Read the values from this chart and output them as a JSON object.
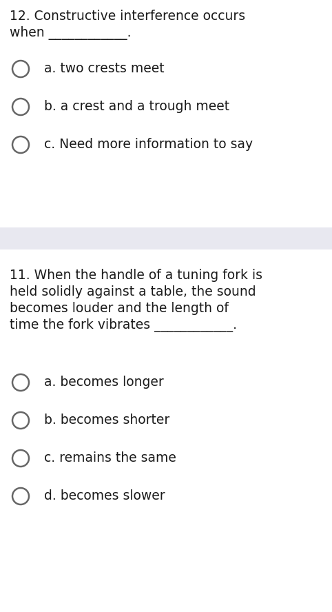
{
  "bg_color": "#ffffff",
  "divider_color": "#e8e8f0",
  "text_color": "#1a1a1a",
  "circle_edge_color": "#666666",
  "q1_number": "12.",
  "q1_text_line1": "Constructive interference occurs",
  "q1_text_line2": "when",
  "q1_blank": "____________.",
  "q1_options": [
    "a. two crests meet",
    "b. a crest and a trough meet",
    "c. Need more information to say"
  ],
  "q2_number": "11.",
  "q2_text_line1": "When the handle of a tuning fork is",
  "q2_text_line2": "held solidly against a table, the sound",
  "q2_text_line3": "becomes louder and the length of",
  "q2_text_line4": "time the fork vibrates",
  "q2_blank": "____________.",
  "q2_options": [
    "a. becomes longer",
    "b. becomes shorter",
    "c. remains the same",
    "d. becomes slower"
  ],
  "font_size_question": 13.5,
  "font_size_option": 13.5,
  "fig_width": 4.82,
  "fig_height": 8.88,
  "dpi": 100
}
